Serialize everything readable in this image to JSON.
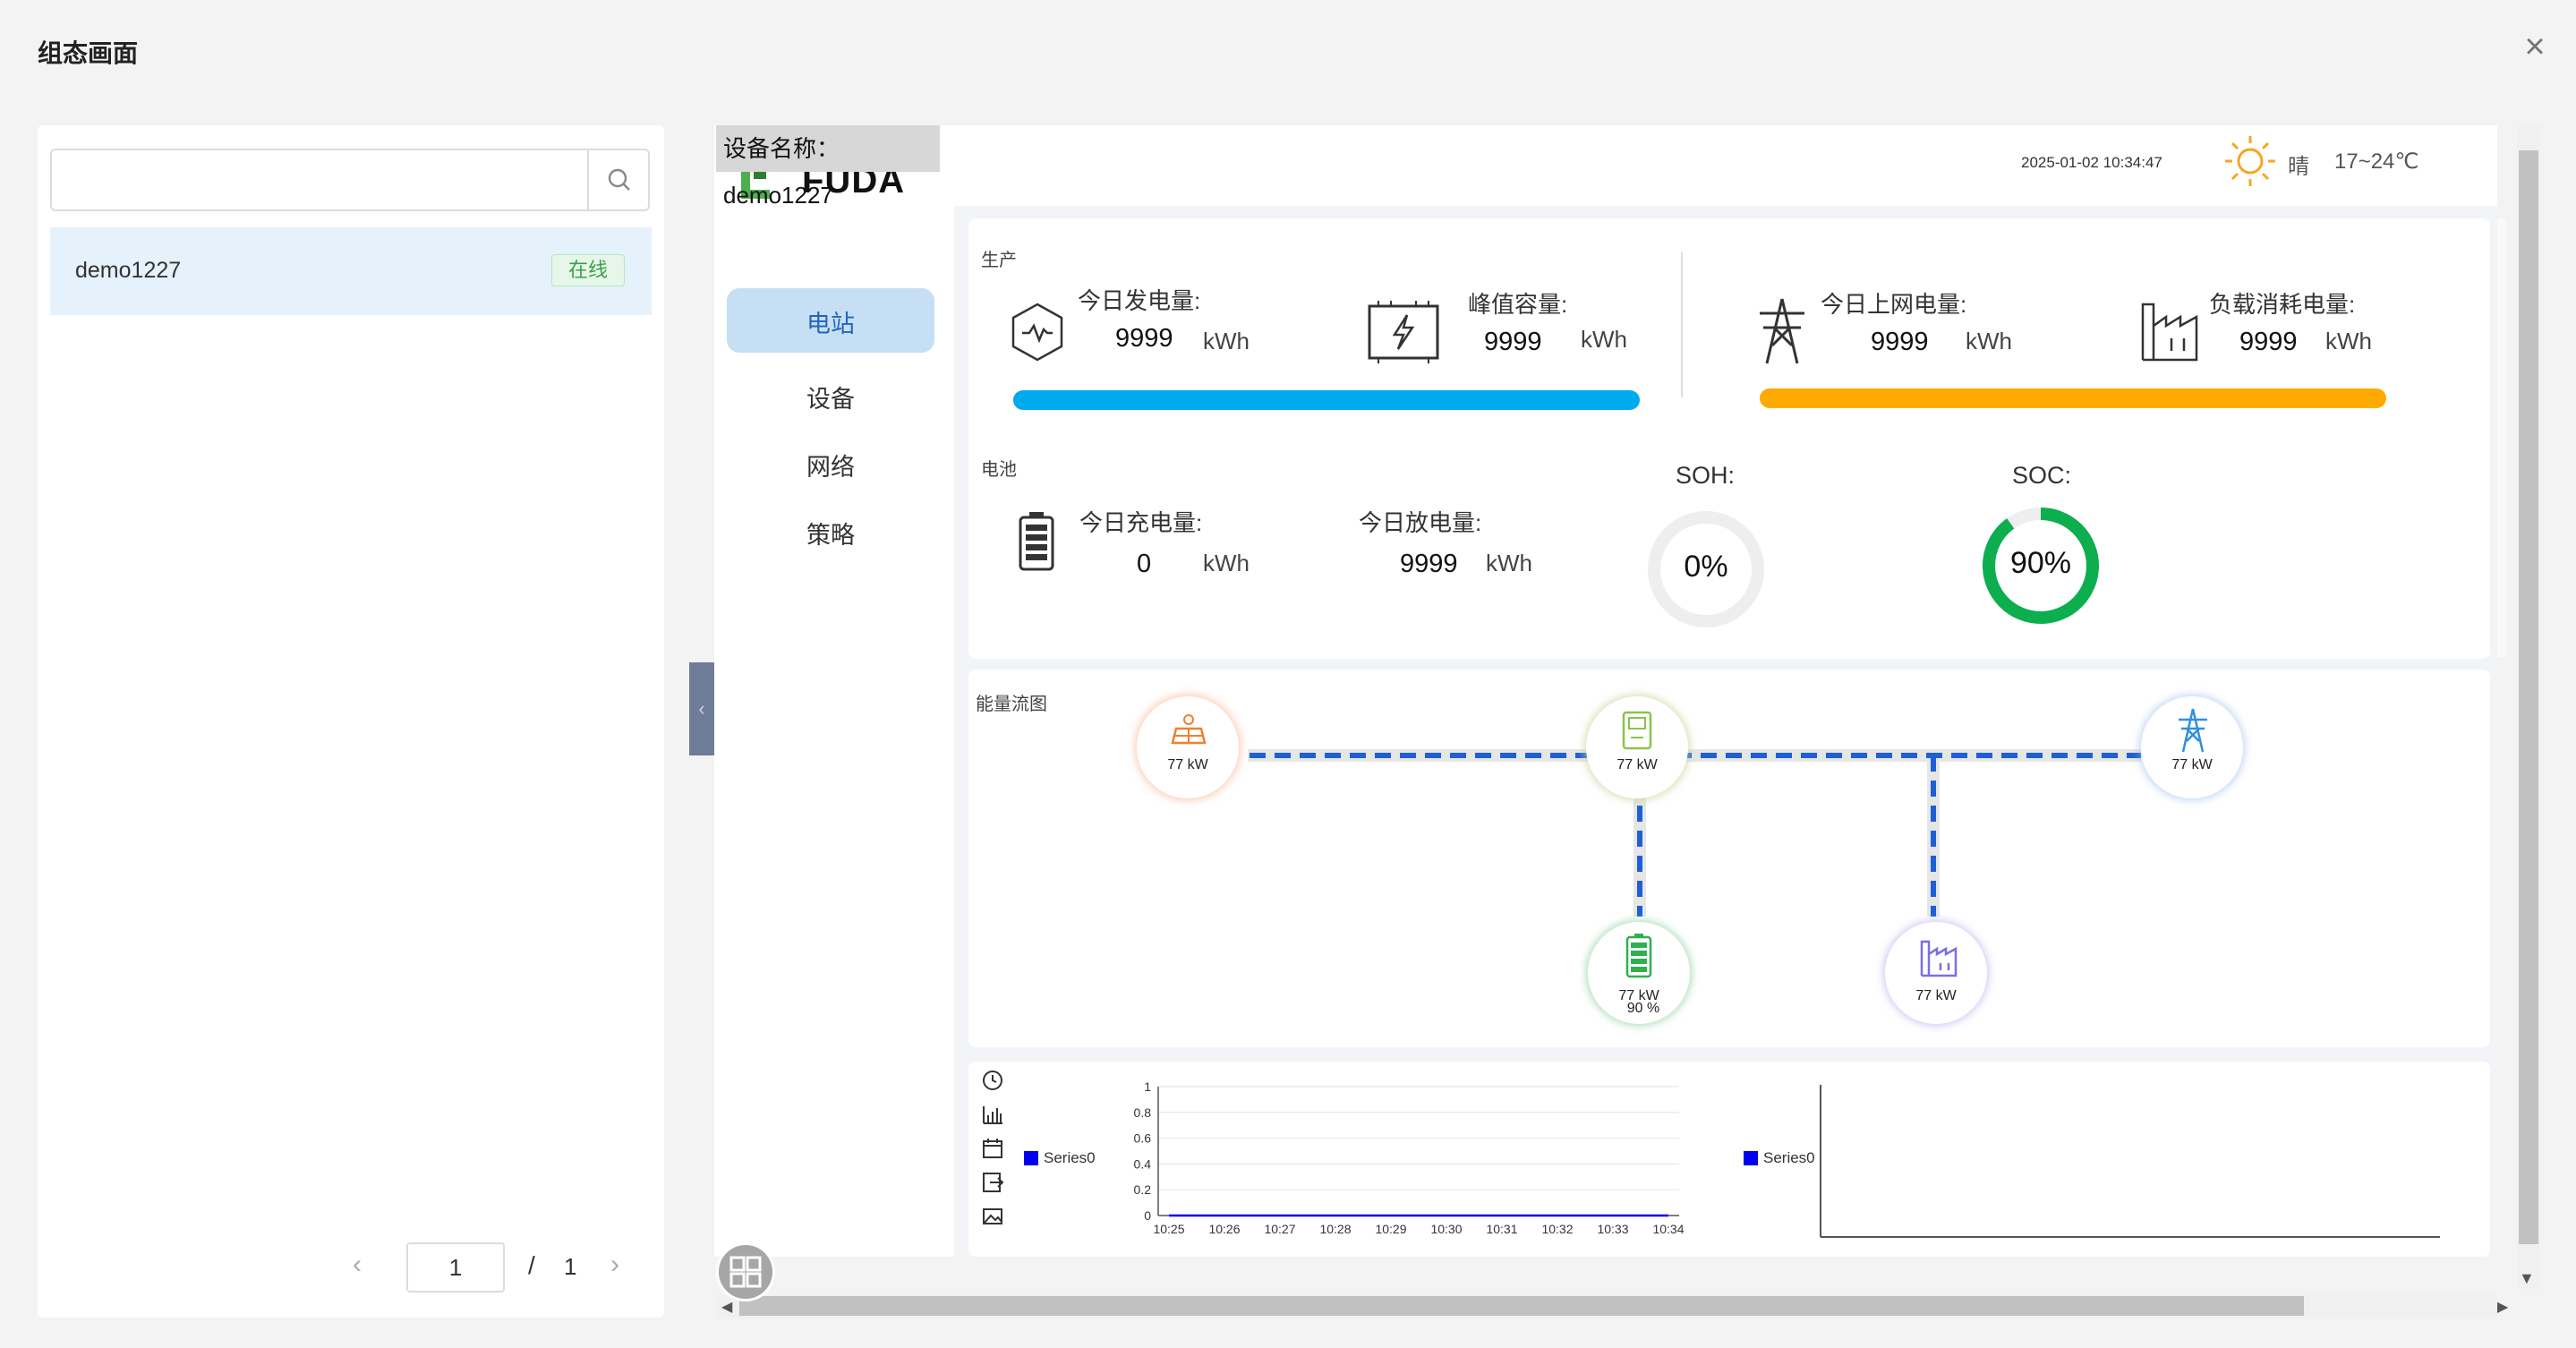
{
  "modal": {
    "title": "组态画面"
  },
  "left_panel": {
    "search": {
      "value": "",
      "placeholder": ""
    },
    "devices": [
      {
        "name": "demo1227",
        "status": "在线"
      }
    ],
    "pager": {
      "current": "1",
      "separator": "/",
      "total": "1"
    }
  },
  "canvas": {
    "device_label": "设备名称：demo1227",
    "logo_text": "FUDA",
    "nav": [
      {
        "label": "电站"
      },
      {
        "label": "设备"
      },
      {
        "label": "网络"
      },
      {
        "label": "策略"
      }
    ],
    "topbar": {
      "datetime": "2025-01-02 10:34:47",
      "weather": "晴",
      "temperature": "17~24℃"
    },
    "production": {
      "section": "生产",
      "daily_generation": {
        "label": "今日发电量:",
        "value": "9999",
        "unit": "kWh"
      },
      "peak_capacity": {
        "label": "峰值容量:",
        "value": "9999",
        "unit": "kWh"
      },
      "grid_export": {
        "label": "今日上网电量:",
        "value": "9999",
        "unit": "kWh"
      },
      "load_consumption": {
        "label": "负载消耗电量:",
        "value": "9999",
        "unit": "kWh"
      },
      "bar_colors": {
        "left": "#00aaee",
        "right": "#ffaa00"
      }
    },
    "battery": {
      "section": "电池",
      "charge": {
        "label": "今日充电量:",
        "value": "0",
        "unit": "kWh"
      },
      "discharge": {
        "label": "今日放电量:",
        "value": "9999",
        "unit": "kWh"
      },
      "soh": {
        "label": "SOH:",
        "value": "0%",
        "fraction": 0
      },
      "soc": {
        "label": "SOC:",
        "value": "90%",
        "fraction": 0.9
      },
      "gauge_color": "#0cae4e"
    },
    "energy_flow": {
      "section": "能量流图",
      "nodes": [
        {
          "name": "pv",
          "power": "77 kW",
          "icon": "solar-panel-icon"
        },
        {
          "name": "inverter",
          "power": "77 kW",
          "icon": "inverter-icon"
        },
        {
          "name": "grid",
          "power": "77 kW",
          "icon": "power-tower-icon"
        },
        {
          "name": "battery",
          "power": "77 kW",
          "soc": "90 %",
          "icon": "battery-icon"
        },
        {
          "name": "load",
          "power": "77 kW",
          "icon": "factory-icon"
        }
      ],
      "line_color": "#1f5fd6"
    },
    "chart_tools": [
      "clock-icon",
      "bar-chart-icon",
      "calendar-icon",
      "export-icon",
      "image-icon"
    ]
  },
  "chart_data": [
    {
      "type": "line",
      "legend": [
        "Series0"
      ],
      "legend_position": "left",
      "x": [
        "10:25",
        "10:26",
        "10:27",
        "10:28",
        "10:29",
        "10:30",
        "10:31",
        "10:32",
        "10:33",
        "10:34"
      ],
      "series": [
        {
          "name": "Series0",
          "values": [
            0,
            0,
            0,
            0,
            0,
            0,
            0,
            0,
            0,
            0
          ]
        }
      ],
      "yticks": [
        "0",
        "0.2",
        "0.4",
        "0.6",
        "0.8",
        "1"
      ],
      "ylim": [
        0,
        1
      ],
      "grid": true,
      "color": "#0000ee"
    },
    {
      "type": "line",
      "legend": [
        "Series0"
      ],
      "legend_position": "left",
      "series": [
        {
          "name": "Series0",
          "values": []
        }
      ],
      "grid": false,
      "color": "#0000ee"
    }
  ]
}
